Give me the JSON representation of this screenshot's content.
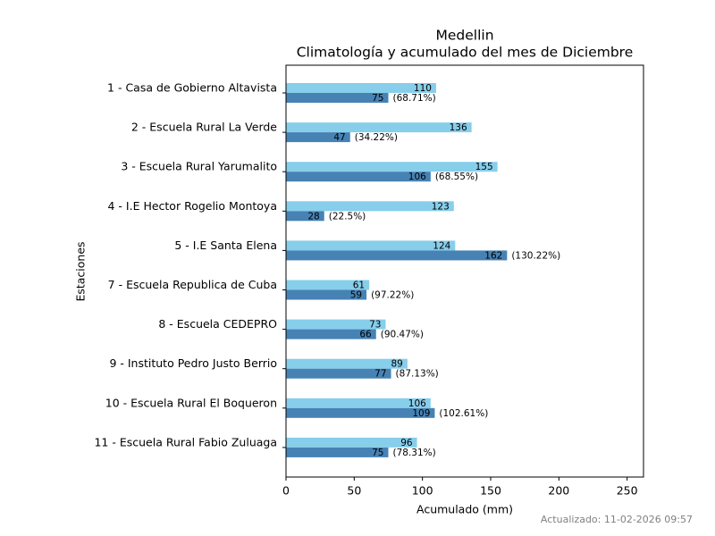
{
  "chart_data": {
    "type": "bar",
    "orientation": "horizontal",
    "title": "Medellin",
    "subtitle": "Climatología y acumulado del mes de Diciembre",
    "x_label": "Acumulado (mm)",
    "y_label": "Estaciones",
    "footer": "Actualizado: 11-02-2026 09:57",
    "categories": [
      "1 - Casa de Gobierno Altavista",
      "2 - Escuela Rural La Verde",
      "3 - Escuela Rural Yarumalito",
      "4 - I.E Hector Rogelio Montoya",
      "5 - I.E Santa Elena",
      "7 - Escuela Republica de Cuba",
      "8 - Escuela CEDEPRO",
      "9 - Instituto Pedro Justo Berrio",
      "10 - Escuela Rural El Boqueron",
      "11 - Escuela Rural Fabio Zuluaga"
    ],
    "series": [
      {
        "color": "#87ceeb",
        "values": [
          110,
          136,
          155,
          123,
          124,
          61,
          73,
          89,
          106,
          96
        ]
      },
      {
        "color": "#4682b4",
        "values": [
          75,
          47,
          106,
          28,
          162,
          59,
          66,
          77,
          109,
          75
        ],
        "percent_labels": [
          "(68.71%)",
          "(34.22%)",
          "(68.55%)",
          "(22.5%)",
          "(130.22%)",
          "(97.22%)",
          "(90.47%)",
          "(87.13%)",
          "(102.61%)",
          "(78.31%)"
        ]
      }
    ],
    "xlim": [
      0,
      262
    ],
    "xticks": [
      0,
      50,
      100,
      150,
      200,
      250
    ]
  }
}
